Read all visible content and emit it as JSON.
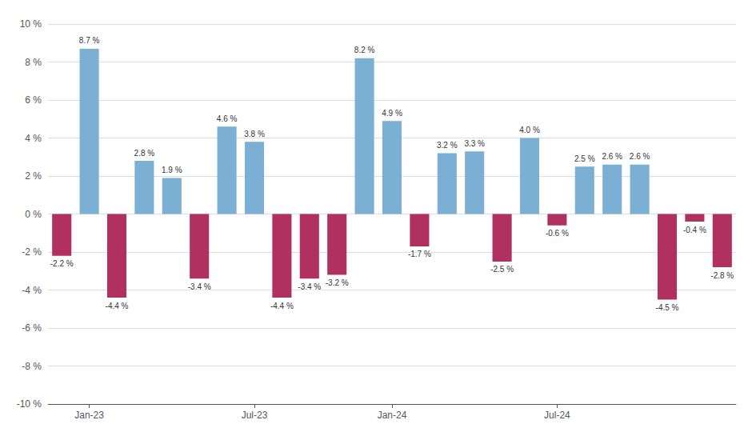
{
  "chart_data": {
    "type": "bar",
    "categories": [
      null,
      "Jan-23",
      null,
      null,
      null,
      null,
      null,
      "Jul-23",
      null,
      null,
      null,
      null,
      "Jan-24",
      null,
      null,
      null,
      null,
      null,
      "Jul-24",
      null,
      null,
      null,
      null,
      null,
      null
    ],
    "values": [
      -2.2,
      8.7,
      -4.4,
      2.8,
      1.9,
      -3.4,
      4.6,
      3.8,
      -4.4,
      -3.4,
      -3.2,
      8.2,
      4.9,
      -1.7,
      3.2,
      3.3,
      -2.5,
      4.0,
      -0.6,
      2.5,
      2.6,
      2.6,
      -4.5,
      -0.4,
      -2.8
    ],
    "value_labels": [
      "-2.2 %",
      "8.7 %",
      "-4.4 %",
      "2.8 %",
      "1.9 %",
      "-3.4 %",
      "4.6 %",
      "3.8 %",
      "-4.4 %",
      "-3.4 %",
      "-3.2 %",
      "8.2 %",
      "4.9 %",
      "-1.7 %",
      "3.2 %",
      "3.3 %",
      "-2.5 %",
      "4.0 %",
      "-0.6 %",
      "2.5 %",
      "2.6 %",
      "2.6 %",
      "-4.5 %",
      "-0.4 %",
      "-2.8 %"
    ],
    "colors": [
      "#b03060",
      "#7bafd4",
      "#b03060",
      "#7bafd4",
      "#7bafd4",
      "#b03060",
      "#7bafd4",
      "#7bafd4",
      "#b03060",
      "#b03060",
      "#b03060",
      "#7bafd4",
      "#7bafd4",
      "#b03060",
      "#7bafd4",
      "#7bafd4",
      "#b03060",
      "#7bafd4",
      "#b03060",
      "#7bafd4",
      "#7bafd4",
      "#7bafd4",
      "#b03060",
      "#b03060",
      "#b03060"
    ],
    "ylim": [
      -10,
      10
    ],
    "yticks": [
      {
        "value": -10,
        "label": "-10 %"
      },
      {
        "value": -8,
        "label": "-8 %"
      },
      {
        "value": -6,
        "label": "-6 %"
      },
      {
        "value": -4,
        "label": "-4 %"
      },
      {
        "value": -2,
        "label": "-2 %"
      },
      {
        "value": 0,
        "label": "0 %"
      },
      {
        "value": 2,
        "label": "2 %"
      },
      {
        "value": 4,
        "label": "4 %"
      },
      {
        "value": 6,
        "label": "6 %"
      },
      {
        "value": 8,
        "label": "8 %"
      },
      {
        "value": 10,
        "label": "10 %"
      }
    ],
    "grid": true,
    "data_labels": true
  }
}
